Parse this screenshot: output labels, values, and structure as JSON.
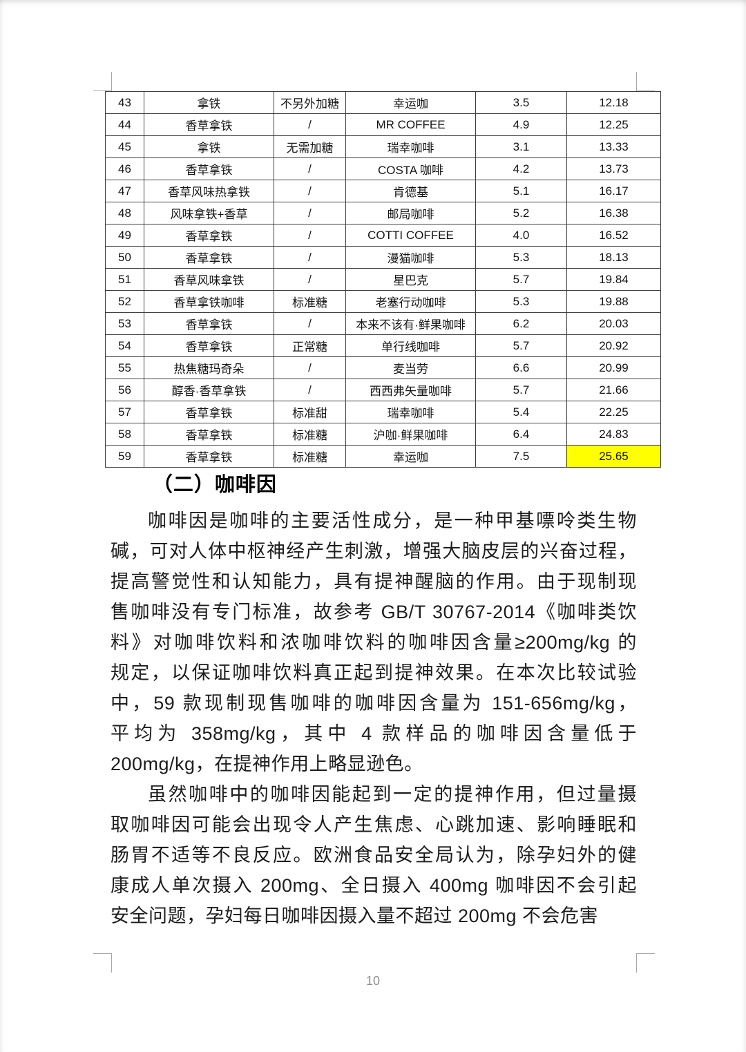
{
  "page": {
    "number": "10",
    "background_color": "#ffffff",
    "highlight_color": "#ffff00",
    "border_color": "#3e3e3e"
  },
  "table": {
    "rows": [
      [
        "43",
        "拿铁",
        "不另外加糖",
        "幸运咖",
        "3.5",
        "12.18"
      ],
      [
        "44",
        "香草拿铁",
        "/",
        "MR COFFEE",
        "4.9",
        "12.25"
      ],
      [
        "45",
        "拿铁",
        "无需加糖",
        "瑞幸咖啡",
        "3.1",
        "13.33"
      ],
      [
        "46",
        "香草拿铁",
        "/",
        "COSTA 咖啡",
        "4.2",
        "13.73"
      ],
      [
        "47",
        "香草风味热拿铁",
        "/",
        "肯德基",
        "5.1",
        "16.17"
      ],
      [
        "48",
        "风味拿铁+香草",
        "/",
        "邮局咖啡",
        "5.2",
        "16.38"
      ],
      [
        "49",
        "香草拿铁",
        "/",
        "COTTI COFFEE",
        "4.0",
        "16.52"
      ],
      [
        "50",
        "香草拿铁",
        "/",
        "漫猫咖啡",
        "5.3",
        "18.13"
      ],
      [
        "51",
        "香草风味拿铁",
        "/",
        "星巴克",
        "5.7",
        "19.84"
      ],
      [
        "52",
        "香草拿铁咖啡",
        "标准糖",
        "老塞行动咖啡",
        "5.3",
        "19.88"
      ],
      [
        "53",
        "香草拿铁",
        "/",
        "本来不该有·鲜果咖啡",
        "6.2",
        "20.03"
      ],
      [
        "54",
        "香草拿铁",
        "正常糖",
        "单行线咖啡",
        "5.7",
        "20.92"
      ],
      [
        "55",
        "热焦糖玛奇朵",
        "/",
        "麦当劳",
        "6.6",
        "20.99"
      ],
      [
        "56",
        "醇香·香草拿铁",
        "/",
        "西西弗矢量咖啡",
        "5.7",
        "21.66"
      ],
      [
        "57",
        "香草拿铁",
        "标准甜",
        "瑞幸咖啡",
        "5.4",
        "22.25"
      ],
      [
        "58",
        "香草拿铁",
        "标准糖",
        "沪咖·鲜果咖啡",
        "6.4",
        "24.83"
      ],
      [
        "59",
        "香草拿铁",
        "标准糖",
        "幸运咖",
        "7.5",
        "25.65"
      ]
    ],
    "highlight_cell": {
      "row": "59",
      "column_index": 5
    }
  },
  "section": {
    "heading": "（二）咖啡因",
    "paragraphs": [
      {
        "lines": [
          "咖啡因是咖啡的主要活性成分，是一种甲基嘌呤类生物",
          "碱，可对人体中枢神经产生刺激，增强大脑皮层的兴奋过程，",
          "提高警觉性和认知能力，具有提神醒脑的作用。由于现制现",
          "售咖啡没有专门标准，故参考 GB/T 30767-2014《咖啡类饮",
          "料》对咖啡饮料和浓咖啡饮料的咖啡因含量≥200mg/kg 的",
          "规定，以保证咖啡饮料真正起到提神效果。在本次比较试验",
          "中，59 款现制现售咖啡的咖啡因含量为 151-656mg/kg，",
          "平均为 358mg/kg，其中 4 款样品的咖啡因含量低于",
          "200mg/kg，在提神作用上略显逊色。"
        ]
      },
      {
        "lines": [
          "虽然咖啡中的咖啡因能起到一定的提神作用，但过量摄",
          "取咖啡因可能会出现令人产生焦虑、心跳加速、影响睡眠和",
          "肠胃不适等不良反应。欧洲食品安全局认为，除孕妇外的健",
          "康成人单次摄入 200mg、全日摄入 400mg 咖啡因不会引起",
          "安全问题，孕妇每日咖啡因摄入量不超过 200mg 不会危害"
        ]
      }
    ]
  }
}
